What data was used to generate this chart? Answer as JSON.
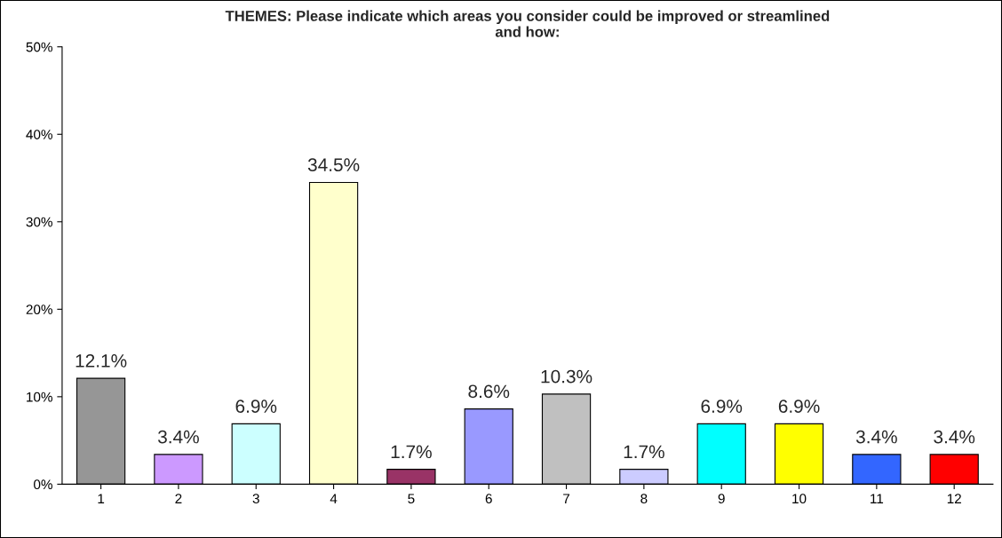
{
  "chart_data": {
    "type": "bar",
    "title": "THEMES: Please indicate which areas you consider could be improved or streamlined\nand how:",
    "categories": [
      "1",
      "2",
      "3",
      "4",
      "5",
      "6",
      "7",
      "8",
      "9",
      "10",
      "11",
      "12"
    ],
    "values": [
      12.1,
      3.4,
      6.9,
      34.5,
      1.7,
      8.6,
      10.3,
      1.7,
      6.9,
      6.9,
      3.4,
      3.4
    ],
    "colors": [
      "#969696",
      "#cc99ff",
      "#ccffff",
      "#ffffcc",
      "#993366",
      "#9999ff",
      "#c0c0c0",
      "#ccccff",
      "#00ffff",
      "#ffff00",
      "#3366ff",
      "#ff0000"
    ],
    "value_labels": [
      "12.1%",
      "3.4%",
      "6.9%",
      "34.5%",
      "1.7%",
      "8.6%",
      "10.3%",
      "1.7%",
      "6.9%",
      "6.9%",
      "3.4%",
      "3.4%"
    ],
    "ylim": [
      0,
      50
    ],
    "yticks": [
      {
        "value": 0,
        "label": "0%"
      },
      {
        "value": 10,
        "label": "10%"
      },
      {
        "value": 20,
        "label": "20%"
      },
      {
        "value": 30,
        "label": "30%"
      },
      {
        "value": 40,
        "label": "40%"
      },
      {
        "value": 50,
        "label": "50%"
      }
    ],
    "grid": false,
    "legend": false
  }
}
